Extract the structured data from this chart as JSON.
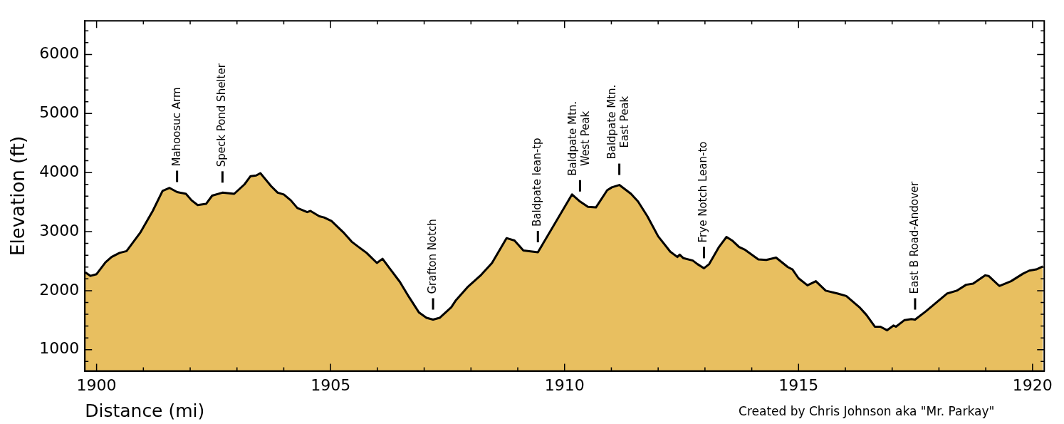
{
  "chart_data": {
    "type": "area",
    "xlabel": "Distance (mi)",
    "ylabel": "Elevation (ft)",
    "xlim": [
      1899.75,
      1920.25
    ],
    "ylim": [
      640,
      6570
    ],
    "xticks": [
      1900,
      {
        "value": 1901,
        "label": null
      },
      {
        "value": 1902,
        "label": null
      },
      {
        "value": 1903,
        "label": null
      },
      {
        "value": 1904,
        "label": null
      },
      1905,
      {
        "value": 1906,
        "label": null
      },
      {
        "value": 1907,
        "label": null
      },
      {
        "value": 1908,
        "label": null
      },
      {
        "value": 1909,
        "label": null
      },
      1910,
      {
        "value": 1911,
        "label": null
      },
      {
        "value": 1912,
        "label": null
      },
      {
        "value": 1913,
        "label": null
      },
      {
        "value": 1914,
        "label": null
      },
      1915,
      {
        "value": 1916,
        "label": null
      },
      {
        "value": 1917,
        "label": null
      },
      {
        "value": 1918,
        "label": null
      },
      {
        "value": 1919,
        "label": null
      },
      1920
    ],
    "yticks": [
      {
        "value": 800,
        "label": null
      },
      1000,
      {
        "value": 1200,
        "label": null
      },
      {
        "value": 1400,
        "label": null
      },
      {
        "value": 1600,
        "label": null
      },
      {
        "value": 1800,
        "label": null
      },
      2000,
      {
        "value": 2200,
        "label": null
      },
      {
        "value": 2400,
        "label": null
      },
      {
        "value": 2600,
        "label": null
      },
      {
        "value": 2800,
        "label": null
      },
      3000,
      {
        "value": 3200,
        "label": null
      },
      {
        "value": 3400,
        "label": null
      },
      {
        "value": 3600,
        "label": null
      },
      {
        "value": 3800,
        "label": null
      },
      4000,
      {
        "value": 4200,
        "label": null
      },
      {
        "value": 4400,
        "label": null
      },
      {
        "value": 4600,
        "label": null
      },
      {
        "value": 4800,
        "label": null
      },
      5000,
      {
        "value": 5200,
        "label": null
      },
      {
        "value": 5400,
        "label": null
      },
      {
        "value": 5600,
        "label": null
      },
      {
        "value": 5800,
        "label": null
      },
      6000,
      {
        "value": 6200,
        "label": null
      },
      {
        "value": 6400,
        "label": null
      }
    ],
    "grid": false,
    "legend": false,
    "series": [
      {
        "color": "#e8bf60",
        "x": [
          1899.76,
          1899.87,
          1900.0,
          1900.19,
          1900.32,
          1900.49,
          1900.64,
          1900.94,
          1901.2,
          1901.41,
          1901.56,
          1901.72,
          1901.91,
          1902.03,
          1902.16,
          1902.34,
          1902.47,
          1902.69,
          1902.94,
          1903.16,
          1903.29,
          1903.41,
          1903.5,
          1903.73,
          1903.87,
          1904.0,
          1904.15,
          1904.29,
          1904.5,
          1904.57,
          1904.76,
          1904.86,
          1905.02,
          1905.27,
          1905.45,
          1905.6,
          1905.77,
          1905.99,
          1906.11,
          1906.26,
          1906.48,
          1906.67,
          1906.89,
          1907.05,
          1907.19,
          1907.33,
          1907.58,
          1907.68,
          1907.94,
          1908.22,
          1908.45,
          1908.76,
          1908.93,
          1909.12,
          1909.43,
          1910.16,
          1910.33,
          1910.5,
          1910.67,
          1910.91,
          1911.01,
          1911.17,
          1911.42,
          1911.57,
          1911.77,
          1912.0,
          1912.26,
          1912.41,
          1912.46,
          1912.54,
          1912.74,
          1912.84,
          1912.98,
          1913.09,
          1913.3,
          1913.46,
          1913.58,
          1913.73,
          1913.86,
          1914.14,
          1914.31,
          1914.52,
          1914.77,
          1914.87,
          1915.0,
          1915.19,
          1915.37,
          1915.58,
          1915.84,
          1916.02,
          1916.3,
          1916.45,
          1916.63,
          1916.75,
          1916.89,
          1917.03,
          1917.08,
          1917.26,
          1917.41,
          1917.49,
          1917.72,
          1918.17,
          1918.38,
          1918.58,
          1918.73,
          1918.99,
          1919.06,
          1919.29,
          1919.54,
          1919.8,
          1919.93,
          1920.08,
          1920.22
        ],
        "values": [
          2310,
          2250,
          2280,
          2480,
          2570,
          2640,
          2670,
          2990,
          3350,
          3690,
          3740,
          3670,
          3640,
          3530,
          3450,
          3470,
          3610,
          3660,
          3640,
          3800,
          3940,
          3950,
          3990,
          3770,
          3660,
          3630,
          3530,
          3400,
          3330,
          3350,
          3260,
          3240,
          3180,
          2990,
          2830,
          2740,
          2640,
          2470,
          2540,
          2380,
          2150,
          1900,
          1630,
          1540,
          1510,
          1540,
          1720,
          1840,
          2070,
          2270,
          2470,
          2890,
          2850,
          2680,
          2650,
          3630,
          3510,
          3420,
          3410,
          3700,
          3750,
          3790,
          3640,
          3510,
          3260,
          2920,
          2660,
          2570,
          2610,
          2550,
          2510,
          2450,
          2380,
          2450,
          2740,
          2910,
          2850,
          2740,
          2690,
          2530,
          2520,
          2560,
          2400,
          2360,
          2210,
          2090,
          2160,
          2000,
          1950,
          1910,
          1720,
          1590,
          1390,
          1390,
          1330,
          1410,
          1390,
          1500,
          1520,
          1510,
          1650,
          1950,
          2000,
          2100,
          2120,
          2260,
          2250,
          2080,
          2160,
          2290,
          2340,
          2360,
          2410
        ]
      }
    ],
    "annotations": [
      {
        "text": "Mahoosuc Arm",
        "x": 1901.72,
        "y": 3670
      },
      {
        "text": "Speck Pond Shelter",
        "x": 1902.69,
        "y": 3660
      },
      {
        "text": "Grafton Notch",
        "x": 1907.19,
        "y": 1510
      },
      {
        "text": "Baldpate lean-tp",
        "x": 1909.43,
        "y": 2650
      },
      {
        "text": "Baldpate Mtn.\nWest Peak",
        "x": 1910.33,
        "y": 3510
      },
      {
        "text": "Baldpate Mtn.\nEast Peak",
        "x": 1911.17,
        "y": 3790
      },
      {
        "text": "Frye Notch Lean-to",
        "x": 1912.98,
        "y": 2380
      },
      {
        "text": "East B Road-Andover",
        "x": 1917.49,
        "y": 1510
      },
      "Created by Chris Johnson aka \"Mr. Parkay\""
    ]
  }
}
